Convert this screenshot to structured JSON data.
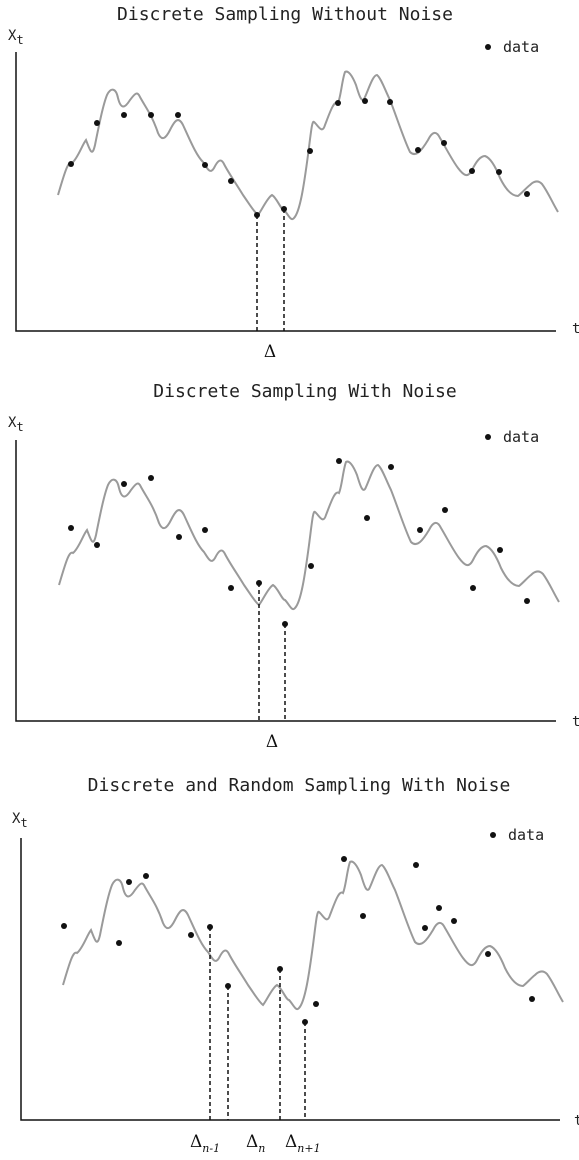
{
  "panels": [
    {
      "title": "Discrete Sampling Without Noise",
      "ylabel": "X",
      "ylabel_sub": "t",
      "xlabel": "t",
      "legend": "data",
      "intervals": [
        {
          "main": "Δ",
          "sub": ""
        }
      ]
    },
    {
      "title": "Discrete Sampling With Noise",
      "ylabel": "X",
      "ylabel_sub": "t",
      "xlabel": "t",
      "legend": "data",
      "intervals": [
        {
          "main": "Δ",
          "sub": ""
        }
      ]
    },
    {
      "title": "Discrete and Random Sampling With Noise",
      "ylabel": "X",
      "ylabel_sub": "t",
      "xlabel": "t",
      "legend": "data",
      "intervals": [
        {
          "main": "Δ",
          "sub": "n-1"
        },
        {
          "main": "Δ",
          "sub": "n"
        },
        {
          "main": "Δ",
          "sub": "n+1"
        }
      ]
    }
  ],
  "colors": {
    "curve": "#9a9a9a",
    "axis": "#111111",
    "points": "#111111"
  }
}
